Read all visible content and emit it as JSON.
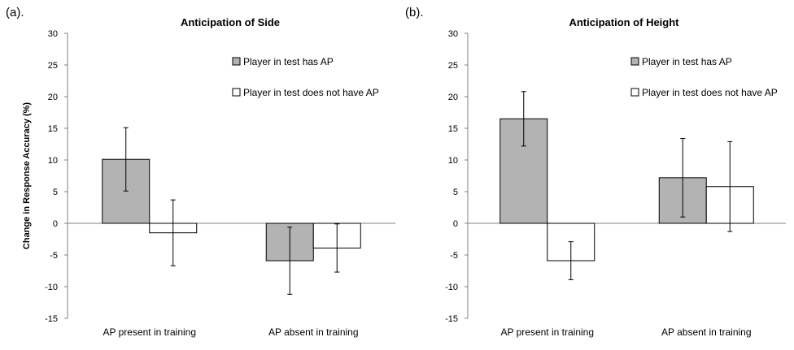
{
  "chart_data": [
    {
      "type": "bar",
      "panel_label": "(a).",
      "title": "Anticipation of Side",
      "ylabel": "Change in Response Accuracy (%)",
      "xlabel": "",
      "ylim": [
        -15,
        30
      ],
      "yticks": [
        30,
        25,
        20,
        15,
        10,
        5,
        0,
        -5,
        -10,
        -15
      ],
      "categories": [
        "AP present in training",
        "AP absent in training"
      ],
      "series": [
        {
          "name": "Player in test has AP",
          "color": "#b3b3b3",
          "values": [
            10.1,
            -5.9
          ],
          "error": [
            5.0,
            5.3
          ]
        },
        {
          "name": "Player in test does not have AP",
          "color": "#ffffff",
          "values": [
            -1.5,
            -3.9
          ],
          "error": [
            5.2,
            3.8
          ]
        }
      ],
      "legend_position": "top-right",
      "grid": false
    },
    {
      "type": "bar",
      "panel_label": "(b).",
      "title": "Anticipation of Height",
      "ylabel": "",
      "xlabel": "",
      "ylim": [
        -15,
        30
      ],
      "yticks": [
        30,
        25,
        20,
        15,
        10,
        5,
        0,
        -5,
        -10,
        -15
      ],
      "categories": [
        "AP present in training",
        "AP absent in training"
      ],
      "series": [
        {
          "name": "Player in test has AP",
          "color": "#b3b3b3",
          "values": [
            16.5,
            7.2
          ],
          "error": [
            4.3,
            6.2
          ]
        },
        {
          "name": "Player in test does not have AP",
          "color": "#ffffff",
          "values": [
            -5.9,
            5.8
          ],
          "error": [
            3.0,
            7.1
          ]
        }
      ],
      "legend_position": "top-right",
      "grid": false
    }
  ]
}
